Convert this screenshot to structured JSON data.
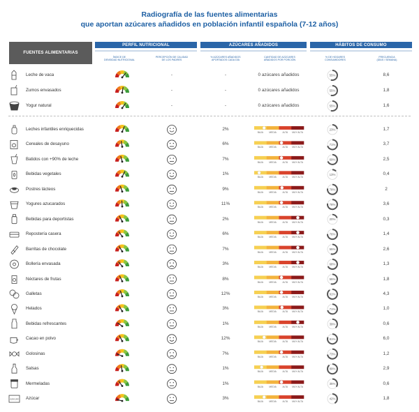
{
  "title": {
    "line1": "Radiografía de las fuentes alimentarias",
    "line2": "que aportan azúcares añadidos en población infantil española (7-12 años)"
  },
  "headers": {
    "sources": "FUENTES ALIMENTARIAS",
    "profile": "PERFIL NUTRICIONAL",
    "sugars": "AZÚCARES AÑADIDOS",
    "habits": "HÁBITOS DE CONSUMO"
  },
  "subheaders": {
    "density": [
      "ÍNDICE DE",
      "DENSIDAD NUTRICIONAL"
    ],
    "perception": [
      "PERCEPCIÓN DE CALIDAD",
      "DE LOS PADRES"
    ],
    "pct_contribution": [
      "% AZÚCARES AÑADIDOS",
      "APORTADOS CADA DÍA"
    ],
    "amount_per_portion": [
      "CANTIDAD DE AZÚCARES",
      "AÑADIDOS POR PORCIÓN"
    ],
    "pct_households": [
      "% DE HOGARES",
      "CONSUMIDORES"
    ],
    "frequency": [
      "FRECUENCIA",
      "(DÍAS / SEMANA)"
    ]
  },
  "bar_labels": [
    "BAJA",
    "MEDIA",
    "ALTA",
    "MUY ALTA"
  ],
  "colors": {
    "header_dark": "#5b5b5b",
    "header_blue": "#2b66a8",
    "title": "#1d5fa3",
    "gauge": [
      "#c8201e",
      "#ef7d1a",
      "#f4c21b",
      "#8cc63f",
      "#3d9c3a"
    ],
    "bar": [
      "#f6d052",
      "#f3b33d",
      "#d9432c",
      "#8b1a1a"
    ],
    "ring": "#555555"
  },
  "chart_data": {
    "type": "table",
    "columns": [
      "Fuentes alimentarias",
      "Índice de densidad nutricional",
      "Percepción de calidad de los padres",
      "% azúcares añadidos aportados cada día",
      "Cantidad de azúcares añadidos por porción",
      "% de hogares consumidores",
      "Frecuencia (días / semana)"
    ],
    "scale": {
      "per_portion_levels": [
        "BAJA",
        "MEDIA",
        "ALTA",
        "MUY ALTA"
      ],
      "per_portion_range": [
        0,
        1
      ],
      "density_range": [
        0,
        1
      ]
    },
    "rows": [
      {
        "name": "Leche de vaca",
        "icon": "milk-carton-icon",
        "density": 0.72,
        "perception": "-",
        "perception_face": "none",
        "pct_daily": "-",
        "per_portion_text": "0 azúcares añadidos",
        "per_portion": null,
        "households": "55%",
        "households_value": 55,
        "frequency": "8,6"
      },
      {
        "name": "Zumos envasados",
        "icon": "juice-box-icon",
        "density": 0.55,
        "perception": "-",
        "perception_face": "none",
        "pct_daily": "-",
        "per_portion_text": "0 azúcares añadidos",
        "per_portion": null,
        "households": "55%",
        "households_value": 55,
        "frequency": "1,8"
      },
      {
        "name": "Yogur natural",
        "icon": "yogurt-cup-icon",
        "density": 0.7,
        "perception": "-",
        "perception_face": "none",
        "pct_daily": "-",
        "per_portion_text": "0 azúcares añadidos",
        "per_portion": null,
        "households": "55%",
        "households_value": 55,
        "frequency": "1,6"
      },
      {
        "name": "Leches infantiles enriquecidas",
        "icon": "baby-bottle-icon",
        "density": 0.62,
        "perception_face": "happy",
        "pct_daily": "2%",
        "per_portion": 0.2,
        "households": "23%",
        "households_value": 23,
        "frequency": "1,7"
      },
      {
        "name": "Cereales de desayuno",
        "icon": "cereal-box-icon",
        "density": 0.45,
        "perception_face": "neutral",
        "pct_daily": "6%",
        "per_portion": 0.55,
        "households": "71%",
        "households_value": 71,
        "frequency": "3,7"
      },
      {
        "name": "Batidos con +90% de leche",
        "icon": "milkshake-icon",
        "density": 0.42,
        "perception_face": "neutral",
        "pct_daily": "7%",
        "per_portion": 0.55,
        "households": "69%",
        "households_value": 69,
        "frequency": "2,5"
      },
      {
        "name": "Bebidas vegetales",
        "icon": "plant-drink-icon",
        "density": 0.65,
        "perception_face": "happy",
        "pct_daily": "1%",
        "per_portion": 0.1,
        "households": "13%",
        "households_value": 13,
        "frequency": "0,4"
      },
      {
        "name": "Postres lácteos",
        "icon": "dessert-icon",
        "density": 0.4,
        "perception_face": "neutral",
        "pct_daily": "9%",
        "per_portion": 0.56,
        "households": "78%",
        "households_value": 78,
        "frequency": "2"
      },
      {
        "name": "Yogures azucarados",
        "icon": "sweet-yogurt-icon",
        "density": 0.48,
        "perception_face": "happy",
        "pct_daily": "11%",
        "per_portion": 0.55,
        "households": "78%",
        "households_value": 78,
        "frequency": "3,6"
      },
      {
        "name": "Bebidas para deportistas",
        "icon": "sports-drink-icon",
        "density": 0.35,
        "perception_face": "neutral",
        "pct_daily": "2%",
        "per_portion": 0.88,
        "households": "20%",
        "households_value": 20,
        "frequency": "0,3"
      },
      {
        "name": "Repostería casera",
        "icon": "homemade-pastry-icon",
        "density": 0.3,
        "perception_face": "happy",
        "pct_daily": "6%",
        "per_portion": 0.88,
        "households": "76%",
        "households_value": 76,
        "frequency": "1,4"
      },
      {
        "name": "Barritas de chocolate",
        "icon": "chocolate-bar-icon",
        "density": 0.32,
        "perception_face": "neutral",
        "pct_daily": "7%",
        "per_portion": 0.88,
        "households": "55%",
        "households_value": 55,
        "frequency": "2,6"
      },
      {
        "name": "Bollería envasada",
        "icon": "packaged-pastry-icon",
        "density": 0.28,
        "perception_face": "sad",
        "pct_daily": "3%",
        "per_portion": 0.88,
        "households": "68%",
        "households_value": 68,
        "frequency": "1,3"
      },
      {
        "name": "Néctares de frutas",
        "icon": "fruit-nectar-icon",
        "density": 0.36,
        "perception_face": "neutral",
        "pct_daily": "8%",
        "per_portion": 0.55,
        "households": "55%",
        "households_value": 55,
        "frequency": "1,8"
      },
      {
        "name": "Galletas",
        "icon": "cookie-icon",
        "density": 0.4,
        "perception_face": "neutral",
        "pct_daily": "12%",
        "per_portion": 0.55,
        "households": "91%",
        "households_value": 91,
        "frequency": "4,3"
      },
      {
        "name": "Helados",
        "icon": "ice-cream-icon",
        "density": 0.33,
        "perception_face": "neutral",
        "pct_daily": "3%",
        "per_portion": 0.56,
        "households": "71%",
        "households_value": 71,
        "frequency": "1,0"
      },
      {
        "name": "Bebidas refrescantes",
        "icon": "soft-drink-icon",
        "density": 0.2,
        "perception_face": "neutral",
        "pct_daily": "1%",
        "per_portion": 0.88,
        "households": "39%",
        "households_value": 39,
        "frequency": "0,6"
      },
      {
        "name": "Cacao en polvo",
        "icon": "cocoa-powder-icon",
        "density": 0.35,
        "perception_face": "happy",
        "pct_daily": "12%",
        "per_portion": 0.2,
        "households": "81%",
        "households_value": 81,
        "frequency": "6,0"
      },
      {
        "name": "Golosinas",
        "icon": "candy-icon",
        "density": 0.12,
        "perception_face": "sad",
        "pct_daily": "7%",
        "per_portion": 0.55,
        "households": "73%",
        "households_value": 73,
        "frequency": "1,2"
      },
      {
        "name": "Salsas",
        "icon": "sauce-bottle-icon",
        "density": 0.44,
        "perception_face": "neutral",
        "pct_daily": "1%",
        "per_portion": 0.15,
        "households": "89%",
        "households_value": 89,
        "frequency": "2,9"
      },
      {
        "name": "Mermeladas",
        "icon": "jam-jar-icon",
        "density": 0.3,
        "perception_face": "neutral",
        "pct_daily": "1%",
        "per_portion": 0.55,
        "households": "35%",
        "households_value": 35,
        "frequency": "0,6"
      },
      {
        "name": "Azúcar",
        "icon": "sugar-pack-icon",
        "icon_text": "AZÚCAR",
        "density": 0.08,
        "perception_face": "neutral",
        "pct_daily": "3%",
        "per_portion": 0.2,
        "households": "42%",
        "households_value": 42,
        "frequency": "1,8"
      }
    ]
  }
}
